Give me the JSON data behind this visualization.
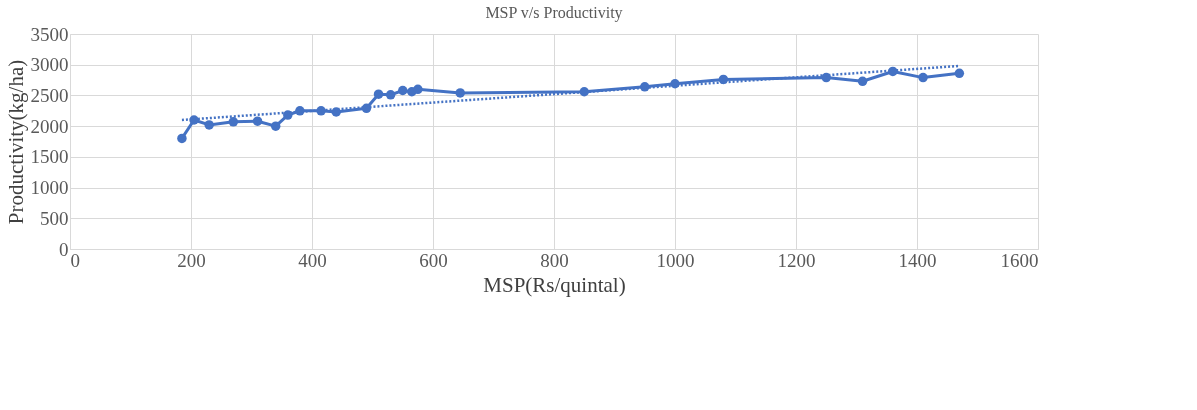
{
  "chart_data": {
    "type": "line",
    "title": "MSP v/s Productivity",
    "xlabel": "MSP(Rs/quintal)",
    "ylabel": "Productivity(kg/ha)",
    "series": [
      {
        "color": "#4472c4",
        "marker": "circle",
        "line_style": "solid",
        "x": [
          185,
          205,
          230,
          270,
          310,
          340,
          360,
          380,
          415,
          440,
          490,
          510,
          530,
          550,
          565,
          575,
          645,
          850,
          950,
          1000,
          1080,
          1250,
          1310,
          1360,
          1410,
          1470
        ],
        "values": [
          1800,
          2100,
          2020,
          2070,
          2080,
          2000,
          2180,
          2250,
          2250,
          2230,
          2290,
          2520,
          2510,
          2580,
          2560,
          2600,
          2540,
          2560,
          2640,
          2690,
          2760,
          2790,
          2730,
          2890,
          2790,
          2860
        ]
      },
      {
        "type": "line",
        "color": "#4472c4",
        "marker": "none",
        "line_style": "dotted",
        "x": [
          185,
          1470
        ],
        "values": [
          2100,
          2980
        ]
      }
    ],
    "xlim": [
      0,
      1600
    ],
    "xticks": [
      0,
      200,
      400,
      600,
      800,
      1000,
      1200,
      1400,
      1600
    ],
    "ylim": [
      0,
      3500
    ],
    "yticks": [
      0,
      500,
      1000,
      1500,
      2000,
      2500,
      3000,
      3500
    ],
    "grid": true
  }
}
